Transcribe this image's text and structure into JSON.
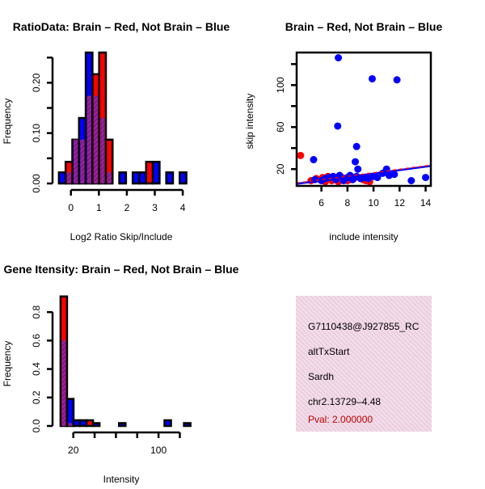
{
  "chart_data": [
    {
      "type": "bar",
      "subtype": "overlaid-histogram",
      "title": "RatioData: Brain – Red, Not Brain – Blue",
      "xlabel": "Log2 Ratio Skip/Include",
      "ylabel": "Frequency",
      "xlim": [
        -0.6,
        4.2
      ],
      "ylim": [
        0,
        0.26
      ],
      "xticks": [
        "0",
        "1",
        "2",
        "3",
        "4"
      ],
      "xtick_values": [
        0,
        1,
        2,
        3,
        4
      ],
      "yticks": [
        "0.00",
        "0.10",
        "0.20"
      ],
      "ytick_values": [
        0,
        0.05,
        0.1,
        0.15,
        0.2,
        0.25
      ],
      "bin_start": -0.43,
      "bin_width": 0.24,
      "series": [
        {
          "name": "Brain",
          "color": "#ff0000",
          "values": [
            0,
            0.043,
            0.087,
            0.087,
            0.174,
            0.217,
            0.26,
            0.087,
            0,
            0,
            0,
            0,
            0,
            0.043,
            0,
            0,
            0,
            0,
            0
          ]
        },
        {
          "name": "Not Brain",
          "color": "#0000ff",
          "values": [
            0.022,
            0.022,
            0.087,
            0.13,
            0.26,
            0.174,
            0.13,
            0.022,
            0,
            0.022,
            0,
            0.022,
            0.022,
            0,
            0.043,
            0,
            0.022,
            0,
            0.022
          ]
        }
      ],
      "overlap_color": "#9a1a9a"
    },
    {
      "type": "scatter",
      "title": "Brain – Red, Not Brain – Blue",
      "xlabel": "include intensity",
      "ylabel": "skip intensity",
      "xlim": [
        4.1,
        14.4
      ],
      "ylim": [
        4,
        131
      ],
      "xticks": [
        "6",
        "8",
        "10",
        "12",
        "14"
      ],
      "xtick_values": [
        6,
        8,
        10,
        12,
        14
      ],
      "yticks": [
        "20",
        "60",
        "100"
      ],
      "ytick_values": [
        20,
        40,
        60,
        80,
        100,
        120
      ],
      "series": [
        {
          "name": "Brain",
          "color": "#ff0000",
          "points": [
            [
              4.4,
              33
            ],
            [
              5.2,
              9
            ],
            [
              5.6,
              11
            ],
            [
              5.9,
              10
            ],
            [
              6.1,
              12
            ],
            [
              6.3,
              8
            ],
            [
              6.5,
              13
            ],
            [
              6.8,
              9
            ],
            [
              7.0,
              11
            ],
            [
              7.3,
              8
            ],
            [
              7.6,
              12
            ],
            [
              8.0,
              9
            ],
            [
              8.2,
              10
            ],
            [
              8.5,
              11
            ],
            [
              9.2,
              10
            ],
            [
              9.4,
              9
            ],
            [
              9.7,
              8
            ]
          ],
          "fit": [
            [
              4.1,
              6
            ],
            [
              14.4,
              23
            ]
          ]
        },
        {
          "name": "Not Brain",
          "color": "#0000ff",
          "points": [
            [
              7.3,
              126
            ],
            [
              9.9,
              106
            ],
            [
              11.8,
              105
            ],
            [
              7.25,
              61
            ],
            [
              8.7,
              41.5
            ],
            [
              5.4,
              29
            ],
            [
              8.6,
              27
            ],
            [
              8.8,
              20
            ],
            [
              11,
              20
            ],
            [
              11.6,
              15
            ],
            [
              12.9,
              9
            ],
            [
              14,
              12
            ],
            [
              5.5,
              10
            ],
            [
              6.0,
              9
            ],
            [
              6.3,
              11
            ],
            [
              6.6,
              12
            ],
            [
              6.9,
              13
            ],
            [
              7.1,
              10
            ],
            [
              7.4,
              14
            ],
            [
              7.7,
              9
            ],
            [
              8.0,
              12
            ],
            [
              8.2,
              14
            ],
            [
              8.4,
              10
            ],
            [
              8.7,
              13
            ],
            [
              9.0,
              11
            ],
            [
              9.3,
              12
            ],
            [
              9.6,
              11
            ],
            [
              10.0,
              13
            ],
            [
              10.3,
              12
            ],
            [
              10.7,
              16
            ],
            [
              11.2,
              14
            ]
          ],
          "fit": [
            [
              4.1,
              6
            ],
            [
              14.4,
              23
            ]
          ]
        }
      ]
    },
    {
      "type": "bar",
      "subtype": "overlaid-histogram",
      "title": "Gene Itensity: Brain – Red, Not Brain – Blue",
      "xlabel": "Intensity",
      "ylabel": "Frequency",
      "xlim": [
        2,
        128
      ],
      "ylim": [
        0,
        0.92
      ],
      "xticks": [
        "20",
        "100"
      ],
      "xtick_values": [
        20,
        40,
        60,
        80,
        100,
        120
      ],
      "labelled_xticks": [
        20,
        100
      ],
      "yticks": [
        "0.0",
        "0.2",
        "0.4",
        "0.6",
        "0.8"
      ],
      "ytick_values": [
        0,
        0.2,
        0.4,
        0.6,
        0.8
      ],
      "bin_start": 8,
      "bin_width": 6.1,
      "series": [
        {
          "name": "Brain",
          "color": "#ff0000",
          "values": [
            0.91,
            0.02,
            0,
            0,
            0.04,
            0,
            0,
            0,
            0,
            0,
            0,
            0,
            0,
            0,
            0,
            0,
            0,
            0,
            0
          ]
        },
        {
          "name": "Not Brain",
          "color": "#0000ff",
          "values": [
            0.6,
            0.19,
            0.04,
            0.04,
            0,
            0.02,
            0,
            0,
            0,
            0.02,
            0,
            0,
            0,
            0,
            0,
            0,
            0.04,
            0,
            0,
            0.02
          ]
        }
      ],
      "overlap_color": "#9a1a9a"
    }
  ],
  "info_box": {
    "lines": [
      "G7110438@J927855_RC",
      "altTxStart",
      "Sardh",
      "chr2.13729–4.48"
    ],
    "pval": "Pval: 2.000000",
    "pval_color": "#bb0000",
    "background": "#f7d8f0"
  }
}
